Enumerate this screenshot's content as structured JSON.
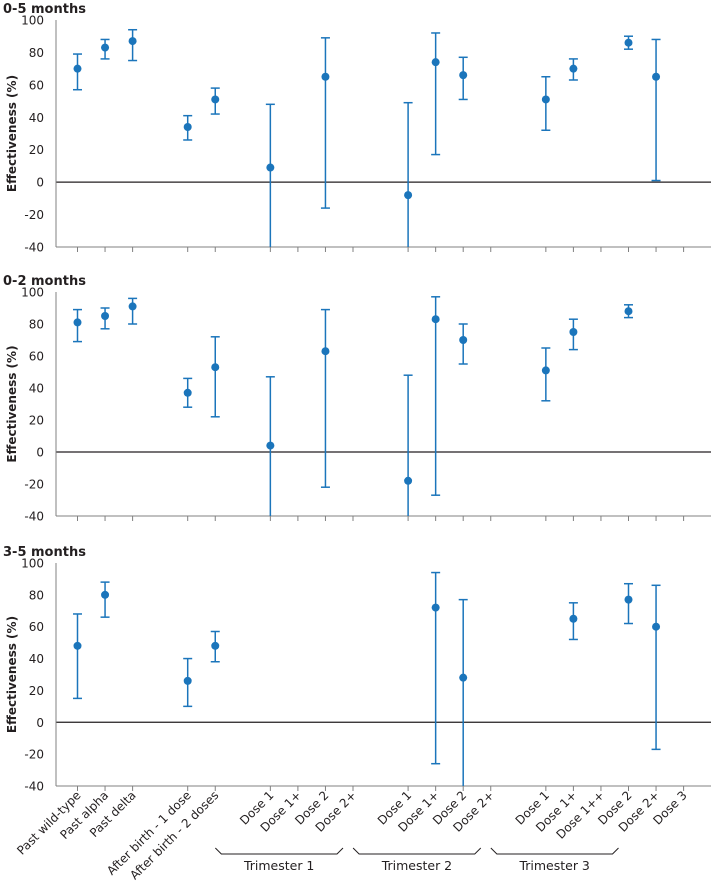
{
  "chart_data": {
    "type": "scatter",
    "x_labels": [
      "Past wild-type",
      "Past alpha",
      "Past delta",
      "After birth - 1 dose",
      "After birth - 2 doses",
      "Dose 1",
      "Dose 1+",
      "Dose 2",
      "Dose 2+",
      "Dose 1",
      "Dose 1+",
      "Dose 2",
      "Dose 2+",
      "Dose 1",
      "Dose 1+",
      "Dose 1++",
      "Dose 2",
      "Dose 2+",
      "Dose 3"
    ],
    "x_slots": [
      0,
      1,
      2,
      4,
      5,
      7,
      8,
      9,
      10,
      12,
      13,
      14,
      15,
      17,
      18,
      19,
      20,
      21,
      22
    ],
    "groups": [
      {
        "label": "Trimester 1",
        "from": 7,
        "to": 10
      },
      {
        "label": "Trimester 2",
        "from": 12,
        "to": 15
      },
      {
        "label": "Trimester 3",
        "from": 17,
        "to": 20
      }
    ],
    "ylim": [
      -40,
      100
    ],
    "yticks": [
      "100",
      "80",
      "60",
      "40",
      "20",
      "0",
      "-20",
      "-40"
    ],
    "ylabel": "Effectiveness (%)",
    "color": "#1b75bb",
    "panels": [
      {
        "title": "0-5 months",
        "points": [
          {
            "slot": 0,
            "est": 70,
            "lo": 57,
            "hi": 79
          },
          {
            "slot": 1,
            "est": 83,
            "lo": 76,
            "hi": 88
          },
          {
            "slot": 2,
            "est": 87,
            "lo": 75,
            "hi": 94
          },
          {
            "slot": 4,
            "est": 34,
            "lo": 26,
            "hi": 41
          },
          {
            "slot": 5,
            "est": 51,
            "lo": 42,
            "hi": 58
          },
          {
            "slot": 7,
            "est": 9,
            "lo": -40,
            "hi": 48
          },
          {
            "slot": 9,
            "est": 65,
            "lo": -16,
            "hi": 89
          },
          {
            "slot": 12,
            "est": -8,
            "lo": -40,
            "hi": 49
          },
          {
            "slot": 13,
            "est": 74,
            "lo": 17,
            "hi": 92
          },
          {
            "slot": 14,
            "est": 66,
            "lo": 51,
            "hi": 77
          },
          {
            "slot": 17,
            "est": 51,
            "lo": 32,
            "hi": 65
          },
          {
            "slot": 18,
            "est": 70,
            "lo": 63,
            "hi": 76
          },
          {
            "slot": 20,
            "est": 86,
            "lo": 82,
            "hi": 90
          },
          {
            "slot": 21,
            "est": 65,
            "lo": 1,
            "hi": 88
          }
        ]
      },
      {
        "title": "0-2 months",
        "points": [
          {
            "slot": 0,
            "est": 81,
            "lo": 69,
            "hi": 89
          },
          {
            "slot": 1,
            "est": 85,
            "lo": 77,
            "hi": 90
          },
          {
            "slot": 2,
            "est": 91,
            "lo": 80,
            "hi": 96
          },
          {
            "slot": 4,
            "est": 37,
            "lo": 28,
            "hi": 46
          },
          {
            "slot": 5,
            "est": 53,
            "lo": 22,
            "hi": 72
          },
          {
            "slot": 7,
            "est": 4,
            "lo": -40,
            "hi": 47
          },
          {
            "slot": 9,
            "est": 63,
            "lo": -22,
            "hi": 89
          },
          {
            "slot": 12,
            "est": -18,
            "lo": -40,
            "hi": 48
          },
          {
            "slot": 13,
            "est": 83,
            "lo": -27,
            "hi": 97
          },
          {
            "slot": 14,
            "est": 70,
            "lo": 55,
            "hi": 80
          },
          {
            "slot": 17,
            "est": 51,
            "lo": 32,
            "hi": 65
          },
          {
            "slot": 18,
            "est": 75,
            "lo": 64,
            "hi": 83
          },
          {
            "slot": 20,
            "est": 88,
            "lo": 84,
            "hi": 92
          }
        ]
      },
      {
        "title": "3-5 months",
        "points": [
          {
            "slot": 0,
            "est": 48,
            "lo": 15,
            "hi": 68
          },
          {
            "slot": 1,
            "est": 80,
            "lo": 66,
            "hi": 88
          },
          {
            "slot": 4,
            "est": 26,
            "lo": 10,
            "hi": 40
          },
          {
            "slot": 5,
            "est": 48,
            "lo": 38,
            "hi": 57
          },
          {
            "slot": 13,
            "est": 72,
            "lo": -26,
            "hi": 94
          },
          {
            "slot": 14,
            "est": 28,
            "lo": -40,
            "hi": 77
          },
          {
            "slot": 18,
            "est": 65,
            "lo": 52,
            "hi": 75
          },
          {
            "slot": 20,
            "est": 77,
            "lo": 62,
            "hi": 87
          },
          {
            "slot": 21,
            "est": 60,
            "lo": -17,
            "hi": 86
          }
        ]
      }
    ]
  }
}
